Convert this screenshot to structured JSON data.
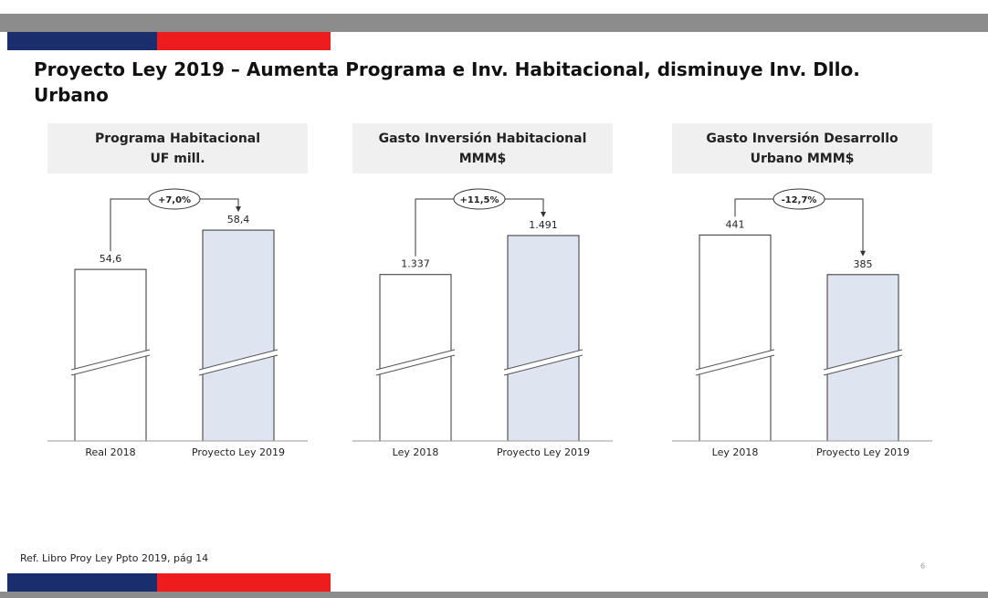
{
  "title": "Proyecto Ley 2019 – Aumenta Programa e Inv. Habitacional, disminuye Inv. Dllo. Urbano",
  "footer": "Ref. Libro Proy Ley Ppto 2019, pág 14",
  "page_number": "6",
  "chart_data": [
    {
      "type": "bar",
      "title": [
        "Programa Habitacional",
        "UF mill."
      ],
      "categories": [
        "Real 2018",
        "Proyecto Ley 2019"
      ],
      "values": [
        54.6,
        58.4
      ],
      "value_labels": [
        "54,6",
        "58,4"
      ],
      "colors": [
        "#ffffff",
        "#dfe5f0"
      ],
      "ylim": [
        38,
        63
      ],
      "broken_axis": true,
      "annotation": "+7,0%"
    },
    {
      "type": "bar",
      "title": [
        "Gasto Inversión Habitacional",
        "MMM$"
      ],
      "categories": [
        "Ley 2018",
        "Proyecto Ley 2019"
      ],
      "values": [
        1337,
        1491
      ],
      "value_labels": [
        "1.337",
        "1.491"
      ],
      "colors": [
        "#ffffff",
        "#dfe5f0"
      ],
      "ylim": [
        680,
        1700
      ],
      "broken_axis": true,
      "annotation": "+11,5%"
    },
    {
      "type": "bar",
      "title": [
        "Gasto Inversión Desarrollo",
        "Urbano MMM$"
      ],
      "categories": [
        "Ley 2018",
        "Proyecto Ley 2019"
      ],
      "values": [
        441,
        385
      ],
      "value_labels": [
        "441",
        "385"
      ],
      "colors": [
        "#ffffff",
        "#dfe5f0"
      ],
      "ylim": [
        150,
        515
      ],
      "broken_axis": true,
      "annotation": "-12,7%"
    }
  ]
}
